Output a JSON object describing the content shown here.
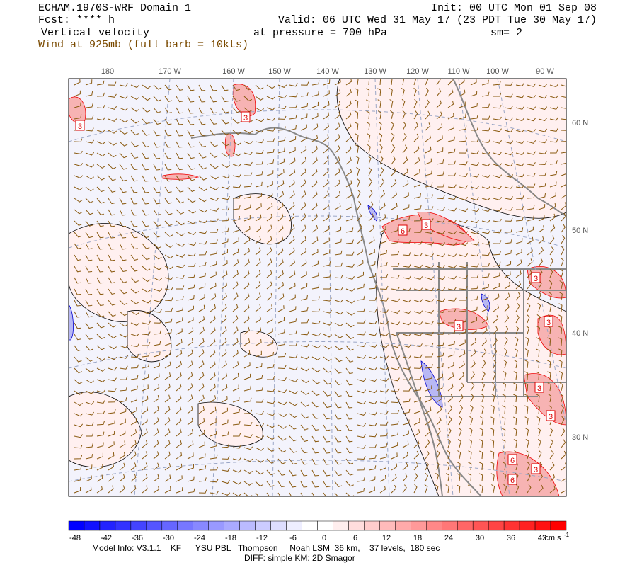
{
  "header": {
    "left": [
      "ECHAM.1970S-WRF Domain 1",
      "Fcst: **** h",
      "Vertical velocity"
    ],
    "wind_note": "Wind at 925mb (full barb = 10kts)",
    "init": "Init: 00 UTC Mon 01 Sep 08",
    "valid": "Valid: 06 UTC Wed 31 May 17 (23 PDT Tue 30 May 17)",
    "pressure": "at pressure =  700 hPa",
    "smoothing": "sm= 2"
  },
  "map": {
    "longitude_labels": [
      "180",
      "170 W",
      "160 W",
      "150 W",
      "140 W",
      "130 W",
      "120 W",
      "110 W",
      "100 W",
      "90 W"
    ],
    "latitude_labels": [
      "60 N",
      "50 N",
      "40 N",
      "30 N"
    ],
    "contour_labels": [
      "3",
      "3",
      "6",
      "3",
      "3",
      "3",
      "3",
      "3",
      "3",
      "6",
      "3",
      "6"
    ]
  },
  "colorbar": {
    "labels": [
      "-48",
      "-42",
      "-36",
      "-30",
      "-24",
      "-18",
      "-12",
      "-6",
      "0",
      "6",
      "12",
      "18",
      "24",
      "30",
      "36",
      "42"
    ],
    "unit": "cm s",
    "unit_exponent": "-1"
  },
  "footer": {
    "model_info": "Model Info: V3.1.1    KF      YSU PBL   Thompson     Noah LSM  36 km,    37 levels,  180 sec",
    "diff": "DIFF: simple KM: 2D Smagor"
  }
}
